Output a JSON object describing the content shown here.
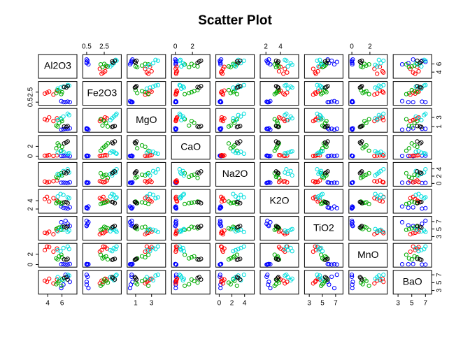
{
  "chart_data": {
    "type": "scatter_matrix",
    "title": "Scatter Plot",
    "variables": [
      {
        "name": "Al2O3",
        "lim": [
          3,
          7.8
        ],
        "ticks": [
          4,
          6
        ]
      },
      {
        "name": "Fe2O3",
        "lim": [
          0.3,
          4.2
        ],
        "ticks": [
          0.5,
          2.5
        ]
      },
      {
        "name": "MgO",
        "lim": [
          0.2,
          4.5
        ],
        "ticks": [
          1,
          3
        ]
      },
      {
        "name": "CaO",
        "lim": [
          -0.2,
          3.8
        ],
        "ticks": [
          0,
          2
        ]
      },
      {
        "name": "Na2O",
        "lim": [
          -0.2,
          5.2
        ],
        "ticks": [
          0,
          2,
          4
        ]
      },
      {
        "name": "K2O",
        "lim": [
          1.5,
          6.2
        ],
        "ticks": [
          2,
          4
        ]
      },
      {
        "name": "TiO2",
        "lim": [
          2.6,
          7.8
        ],
        "ticks": [
          3,
          5,
          7
        ]
      },
      {
        "name": "MnO",
        "lim": [
          -0.1,
          3.7
        ],
        "ticks": [
          0,
          2
        ]
      },
      {
        "name": "BaO",
        "lim": [
          2.6,
          7.6
        ],
        "ticks": [
          3,
          5,
          7
        ]
      }
    ],
    "series": [
      {
        "color": "#0000ff",
        "values": [
          [
            6.2,
            0.5,
            0.4,
            0.05,
            0.2,
            2.3,
            6.0,
            0.05,
            4.5
          ],
          [
            6.8,
            0.6,
            0.5,
            0.1,
            0.1,
            2.1,
            6.4,
            0.0,
            6.5
          ],
          [
            7.1,
            0.5,
            0.6,
            0.0,
            0.3,
            2.4,
            5.8,
            0.1,
            5.2
          ],
          [
            5.9,
            0.7,
            0.3,
            0.05,
            0.2,
            2.6,
            6.8,
            0.05,
            3.6
          ],
          [
            6.5,
            0.5,
            0.5,
            0.1,
            0.15,
            2.2,
            7.2,
            0.0,
            7.0
          ]
        ]
      },
      {
        "color": "#ff0000",
        "values": [
          [
            3.6,
            2.2,
            2.6,
            0.1,
            0.5,
            4.4,
            4.0,
            2.8,
            5.5
          ],
          [
            4.2,
            2.6,
            3.0,
            0.2,
            0.4,
            3.8,
            4.3,
            3.4,
            6.0
          ],
          [
            4.8,
            2.0,
            2.2,
            0.05,
            0.6,
            4.6,
            3.6,
            2.5,
            4.8
          ],
          [
            5.3,
            2.8,
            2.8,
            0.15,
            0.8,
            4.0,
            4.6,
            3.1,
            5.8
          ],
          [
            3.9,
            2.4,
            2.4,
            0.1,
            0.3,
            4.9,
            3.9,
            3.5,
            5.2
          ]
        ]
      },
      {
        "color": "#00aa00",
        "values": [
          [
            5.2,
            2.3,
            1.2,
            1.6,
            1.8,
            3.4,
            5.0,
            1.2,
            4.6
          ],
          [
            5.6,
            2.7,
            1.8,
            2.2,
            2.4,
            3.6,
            5.4,
            1.6,
            5.4
          ],
          [
            5.9,
            2.1,
            2.6,
            1.1,
            2.8,
            3.2,
            4.8,
            1.9,
            4.2
          ],
          [
            5.4,
            2.9,
            1.0,
            2.6,
            1.5,
            3.8,
            5.2,
            1.0,
            5.0
          ],
          [
            6.0,
            2.5,
            2.2,
            1.9,
            2.2,
            3.5,
            5.6,
            1.4,
            5.8
          ]
        ]
      },
      {
        "color": "#00dddd",
        "values": [
          [
            5.4,
            3.2,
            2.4,
            0.7,
            2.6,
            5.0,
            4.4,
            2.8,
            6.4
          ],
          [
            6.2,
            3.6,
            3.2,
            0.9,
            3.4,
            5.4,
            4.8,
            3.2,
            5.6
          ],
          [
            6.8,
            3.9,
            3.8,
            0.5,
            3.9,
            4.8,
            4.2,
            3.5,
            7.0
          ],
          [
            5.8,
            3.4,
            2.8,
            1.0,
            2.2,
            5.6,
            5.0,
            2.6,
            6.0
          ],
          [
            7.0,
            3.8,
            3.5,
            0.6,
            3.0,
            4.6,
            4.6,
            3.0,
            6.8
          ]
        ]
      },
      {
        "color": "#000000",
        "values": [
          [
            6.3,
            3.5,
            1.0,
            2.6,
            3.0,
            3.6,
            5.6,
            1.0,
            6.2
          ],
          [
            6.8,
            3.7,
            1.1,
            3.0,
            3.3,
            3.4,
            5.8,
            1.1,
            5.8
          ],
          [
            6.6,
            3.4,
            0.9,
            2.8,
            2.8,
            3.7,
            5.4,
            0.9,
            6.4
          ]
        ]
      }
    ]
  }
}
